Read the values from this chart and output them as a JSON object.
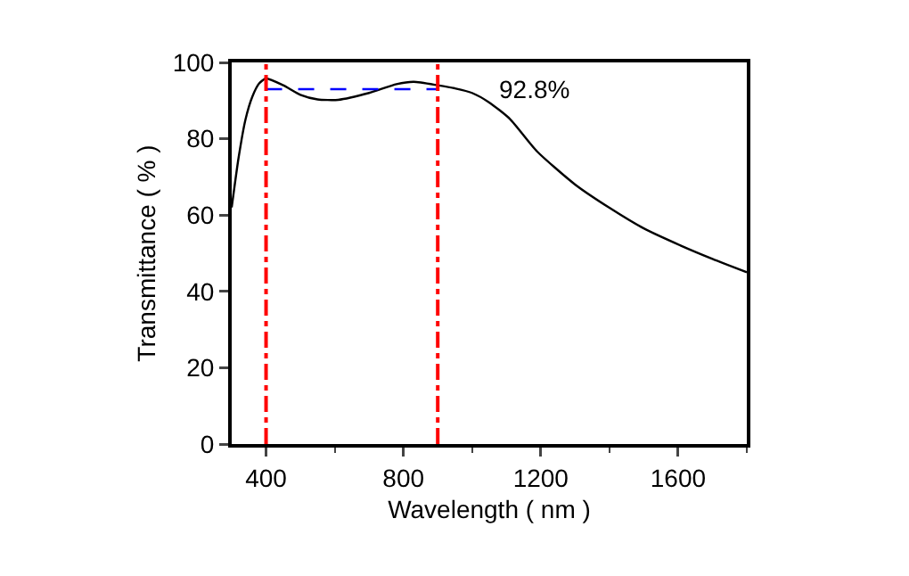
{
  "chart_data": {
    "type": "line",
    "xlabel": "Wavelength ( nm )",
    "ylabel": "Transmittance ( % )",
    "xlim": [
      300,
      1800
    ],
    "xticks": [
      400,
      800,
      1200,
      1600
    ],
    "ylim": [
      0,
      100
    ],
    "yticks": [
      0,
      20,
      40,
      60,
      80,
      100
    ],
    "grid": false,
    "marker": "none",
    "series": [
      {
        "color": "#000000",
        "line_style": "solid",
        "x": [
          300,
          320,
          340,
          360,
          380,
          400,
          450,
          500,
          550,
          610,
          700,
          780,
          830,
          900,
          950,
          1000,
          1050,
          1110,
          1189,
          1300,
          1400,
          1500,
          1610,
          1700,
          1800
        ],
        "values": [
          62,
          75,
          85,
          91,
          94.5,
          95.8,
          94,
          91.5,
          90.3,
          90.2,
          92,
          94.3,
          94.9,
          94,
          93.2,
          92,
          89.5,
          85.2,
          76.7,
          68,
          61.9,
          56.5,
          51.9,
          48.5,
          45
        ]
      },
      {
        "color": "#0000ff",
        "line_style": "dashed",
        "x": [
          400,
          900
        ],
        "values": [
          93,
          93
        ]
      }
    ],
    "ref_lines": [
      {
        "axis": "x",
        "value": 400,
        "color": "#ff0000",
        "line_style": "dashdot"
      },
      {
        "axis": "x",
        "value": 900,
        "color": "#ff0000",
        "line_style": "dashdot"
      }
    ],
    "annotations": [
      "92.8%"
    ]
  }
}
